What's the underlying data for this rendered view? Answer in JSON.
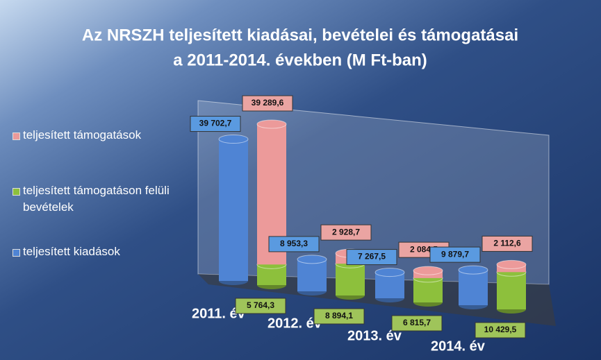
{
  "chart_data": {
    "type": "bar3d",
    "title": [
      "Az NRSZH teljesített kiadásai, bevételei és támogatásai",
      "a 2011-2014. években (M Ft-ban)"
    ],
    "categories": [
      "2011. év",
      "2012. év",
      "2013. év",
      "2014. év"
    ],
    "series": [
      {
        "name": "teljesített kiadások",
        "color": "#4f84d4",
        "label_color": "#5a9ae0",
        "stack": "a",
        "values": [
          39702.7,
          8953.3,
          7267.5,
          9879.7
        ],
        "value_labels": [
          "39 702,7",
          "8 953,3",
          "7 267,5",
          "9 879,7"
        ]
      },
      {
        "name": "teljesített támogatáson felüli bevételek",
        "color": "#8dc03c",
        "label_color": "#9fc45a",
        "stack": "b",
        "values": [
          5764.3,
          8894.1,
          6815.7,
          10429.5
        ],
        "value_labels": [
          "5 764,3",
          "8 894,1",
          "6 815,7",
          "10 429,5"
        ]
      },
      {
        "name": "teljesített támogatások",
        "color": "#ec9a9a",
        "label_color": "#eaa4a2",
        "stack": "b",
        "values": [
          39289.6,
          2928.7,
          2084.5,
          2112.6
        ],
        "value_labels": [
          "39 289,6",
          "2 928,7",
          "2 084,5",
          "2 112,6"
        ]
      }
    ]
  }
}
